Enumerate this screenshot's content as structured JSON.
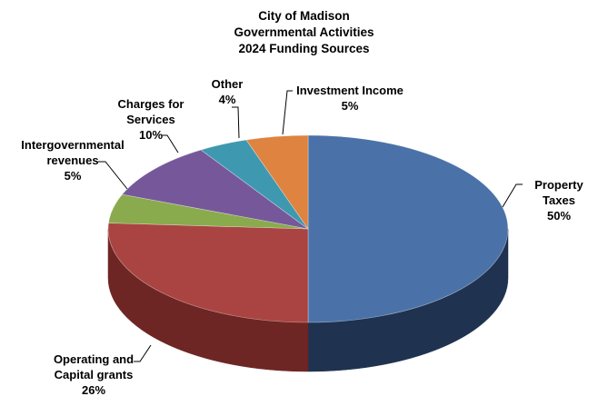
{
  "chart_data": {
    "type": "pie",
    "style": "3d",
    "title": [
      "City of Madison",
      "Governmental Activities",
      "2024 Funding Sources"
    ],
    "start_angle_deg": 90,
    "direction": "clockwise",
    "slices": [
      {
        "label_lines": [
          "Property",
          "Taxes"
        ],
        "pct_text": "50%",
        "value": 50,
        "color": "#4A72A8",
        "side": "#1F3350"
      },
      {
        "label_lines": [
          "Operating and",
          "Capital grants"
        ],
        "pct_text": "26%",
        "value": 26,
        "color": "#AA4442",
        "side": "#6E2624"
      },
      {
        "label_lines": [
          "Intergovernmental",
          "revenues"
        ],
        "pct_text": "5%",
        "value": 5,
        "color": "#8AAA4E",
        "side": "#5A6F30"
      },
      {
        "label_lines": [
          "Charges for",
          "Services"
        ],
        "pct_text": "10%",
        "value": 10,
        "color": "#76589A",
        "side": "#4C3866"
      },
      {
        "label_lines": [
          "Other"
        ],
        "pct_text": "4%",
        "value": 4,
        "color": "#3E98B0",
        "side": "#276272"
      },
      {
        "label_lines": [
          "Investment Income"
        ],
        "pct_text": "5%",
        "value": 5,
        "color": "#DE8340",
        "side": "#94552A"
      }
    ]
  }
}
